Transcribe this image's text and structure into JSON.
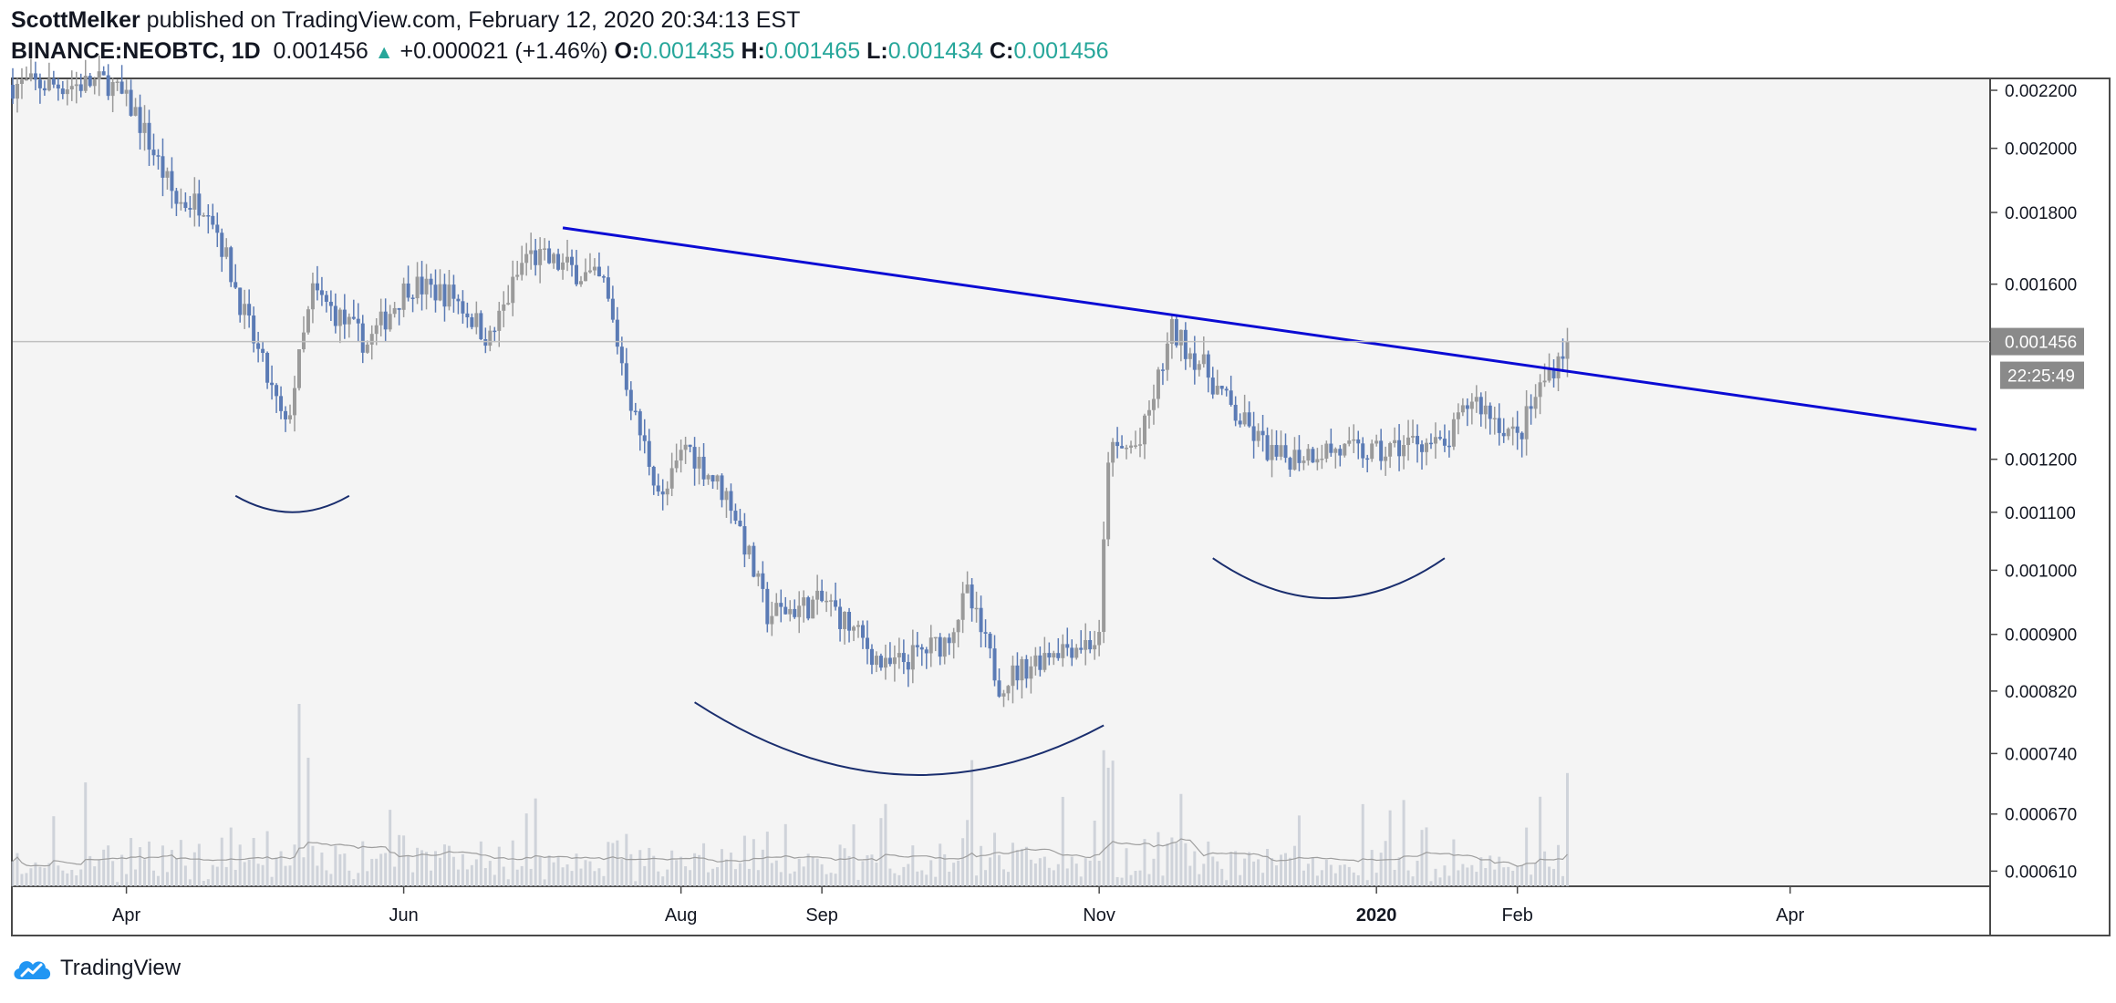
{
  "header": {
    "author": "ScottMelker",
    "published_text": "published on TradingView.com, February 12, 2020 20:34:13 EST",
    "symbol": "BINANCE:NEOBTC, 1D",
    "last": "0.001456",
    "change": "+0.000021 (+1.46%)",
    "o_label": "O:",
    "o_value": "0.001435",
    "h_label": "H:",
    "h_value": "0.001465",
    "l_label": "L:",
    "l_value": "0.001434",
    "c_label": "C:",
    "c_value": "0.001456"
  },
  "footer": {
    "brand": "TradingView"
  },
  "colors": {
    "up_body": "#9a9a9a",
    "down_body": "#5b7bb5",
    "trendline": "#0b0bd4",
    "arc": "#1a2e6e",
    "plot_bg": "#f4f4f4",
    "volume": "#c5cad3"
  },
  "chart_data": {
    "type": "candlestick",
    "title": "BINANCE:NEOBTC, 1D",
    "y_scale": "log",
    "ylim": [
      0.000595,
      0.00224
    ],
    "y_ticks": [
      "0.002200",
      "0.002000",
      "0.001800",
      "0.001600",
      "0.001200",
      "0.001100",
      "0.001000",
      "0.000900",
      "0.000820",
      "0.000740",
      "0.000670",
      "0.000610"
    ],
    "x_ticks": [
      "Apr",
      "Jun",
      "Aug",
      "Sep",
      "Nov",
      "2020",
      "Feb",
      "Apr"
    ],
    "x_range": [
      "2019-03-07",
      "2020-05-15"
    ],
    "last_price_label": "0.001456",
    "countdown_label": "22:25:49",
    "price_path": [
      [
        "2019-03-07",
        0.00222
      ],
      [
        "2019-03-20",
        0.00222
      ],
      [
        "2019-03-28",
        0.00223
      ],
      [
        "2019-04-03",
        0.00212
      ],
      [
        "2019-04-12",
        0.00183
      ],
      [
        "2019-04-19",
        0.00183
      ],
      [
        "2019-04-27",
        0.00152
      ],
      [
        "2019-05-06",
        0.00126
      ],
      [
        "2019-05-12",
        0.00158
      ],
      [
        "2019-05-24",
        0.00145
      ],
      [
        "2019-06-02",
        0.0016
      ],
      [
        "2019-06-12",
        0.00157
      ],
      [
        "2019-06-20",
        0.00146
      ],
      [
        "2019-06-28",
        0.00168
      ],
      [
        "2019-07-08",
        0.00164
      ],
      [
        "2019-07-15",
        0.0016
      ],
      [
        "2019-07-22",
        0.00128
      ],
      [
        "2019-07-28",
        0.00112
      ],
      [
        "2019-08-02",
        0.00123
      ],
      [
        "2019-08-12",
        0.00112
      ],
      [
        "2019-08-20",
        0.00093
      ],
      [
        "2019-09-02",
        0.00095
      ],
      [
        "2019-09-10",
        0.00089
      ],
      [
        "2019-09-15",
        0.00085
      ],
      [
        "2019-09-28",
        0.00089
      ],
      [
        "2019-10-03",
        0.00096
      ],
      [
        "2019-10-10",
        0.00083
      ],
      [
        "2019-10-22",
        0.00088
      ],
      [
        "2019-11-01",
        0.00089
      ],
      [
        "2019-11-03",
        0.00121
      ],
      [
        "2019-11-10",
        0.00123
      ],
      [
        "2019-11-17",
        0.00148
      ],
      [
        "2019-11-23",
        0.00141
      ],
      [
        "2019-12-01",
        0.00129
      ],
      [
        "2019-12-10",
        0.0012
      ],
      [
        "2019-12-20",
        0.00122
      ],
      [
        "2020-01-02",
        0.00121
      ],
      [
        "2020-01-10",
        0.00124
      ],
      [
        "2020-01-16",
        0.00122
      ],
      [
        "2020-01-22",
        0.00133
      ],
      [
        "2020-02-01",
        0.00124
      ],
      [
        "2020-02-06",
        0.00135
      ],
      [
        "2020-02-12",
        0.001456
      ]
    ],
    "trendline": [
      [
        "2019-07-06",
        0.001755
      ],
      [
        "2020-05-12",
        0.00126
      ]
    ],
    "arcs": [
      {
        "from": [
          "2019-04-25",
          0.00113
        ],
        "to": [
          "2019-05-20",
          0.00113
        ],
        "bottom": 0.0011
      },
      {
        "from": [
          "2019-08-04",
          0.000805
        ],
        "to": [
          "2019-11-02",
          0.000775
        ],
        "bottom": 0.000715
      },
      {
        "from": [
          "2019-11-26",
          0.00102
        ],
        "to": [
          "2020-01-16",
          0.00102
        ],
        "bottom": 0.000955
      }
    ],
    "volume_avg_visible": true,
    "grid": false
  }
}
